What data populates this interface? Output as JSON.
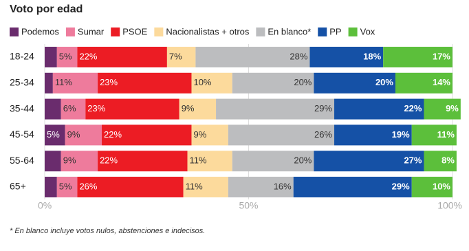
{
  "chart_data": {
    "type": "stacked-bar-horizontal",
    "title": "Voto por edad",
    "categories": [
      "18-24",
      "25-34",
      "35-44",
      "45-54",
      "55-64",
      "65+"
    ],
    "series": [
      {
        "name": "Podemos",
        "color": "#6a2c6d",
        "values": [
          3,
          2,
          4,
          5,
          4,
          3
        ],
        "value_labels": [
          null,
          null,
          null,
          "5%",
          null,
          null
        ]
      },
      {
        "name": "Sumar",
        "color": "#ee7b9c",
        "values": [
          5,
          11,
          6,
          9,
          9,
          5
        ],
        "value_labels": [
          "5%",
          "11%",
          "6%",
          "9%",
          "9%",
          "5%"
        ]
      },
      {
        "name": "PSOE",
        "color": "#ec1c24",
        "values": [
          22,
          23,
          23,
          22,
          22,
          26
        ],
        "value_labels": [
          "22%",
          "23%",
          "23%",
          "22%",
          "22%",
          "26%"
        ]
      },
      {
        "name": "Nacionalistas + otros",
        "color": "#fcda9c",
        "values": [
          7,
          10,
          9,
          9,
          11,
          11
        ],
        "value_labels": [
          "7%",
          "10%",
          "9%",
          "9%",
          "11%",
          "11%"
        ]
      },
      {
        "name": "En blanco*",
        "color": "#bcbdbf",
        "values": [
          28,
          20,
          29,
          26,
          20,
          16
        ],
        "value_labels": [
          "28%",
          "20%",
          "29%",
          "26%",
          "20%",
          "16%"
        ]
      },
      {
        "name": "PP",
        "color": "#1551a6",
        "values": [
          18,
          20,
          22,
          19,
          27,
          29
        ],
        "value_labels": [
          "18%",
          "20%",
          "22%",
          "19%",
          "27%",
          "29%"
        ]
      },
      {
        "name": "Vox",
        "color": "#5cbf3b",
        "values": [
          17,
          14,
          9,
          11,
          8,
          10
        ],
        "value_labels": [
          "17%",
          "14%",
          "9%",
          "11%",
          "8%",
          "10%"
        ]
      }
    ],
    "xlim": [
      0,
      100
    ],
    "xticks": [
      {
        "value": 0,
        "label": "0%"
      },
      {
        "value": 50,
        "label": "50%"
      },
      {
        "value": 100,
        "label": "100%"
      }
    ],
    "grid": true,
    "footnote": "* En blanco incluye votos nulos, abstenciones e indecisos."
  }
}
